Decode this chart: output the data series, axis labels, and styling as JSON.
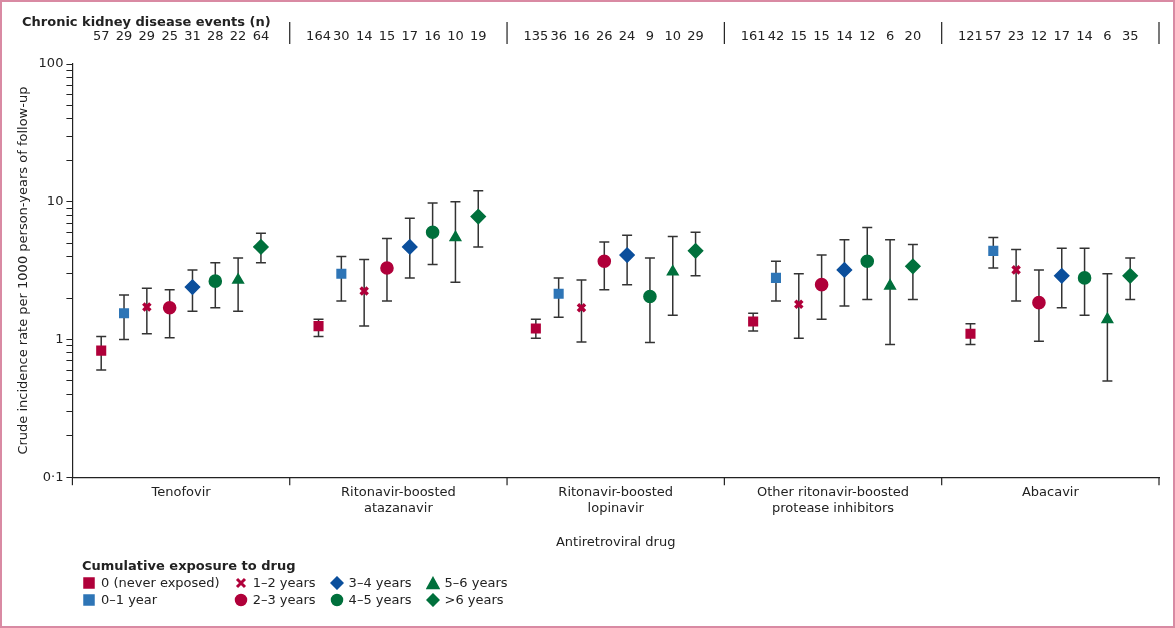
{
  "chart_data": {
    "type": "scatter",
    "xlabel": "Antiretroviral drug",
    "ylabel": "Crude incidence rate per 1000 person-years of follow-up",
    "legend_title": "Cumulative exposure to drug",
    "legend": "bottom left",
    "log": true,
    "grid": false,
    "annotations": [
      "Chronic kidney disease events (n)",
      "57",
      "29",
      "29",
      "25",
      "31",
      "28",
      "22",
      "64",
      "164",
      "30",
      "14",
      "15",
      "17",
      "16",
      "10",
      "19",
      "135",
      "36",
      "16",
      "26",
      "24",
      "9",
      "10",
      "29",
      "161",
      "42",
      "15",
      "15",
      "14",
      "12",
      "6",
      "20",
      "121",
      "57",
      "23",
      "12",
      "17",
      "14",
      "6",
      "35"
    ],
    "categories": [
      "Tenofovir",
      "Ritonavir-boosted atazanavir",
      "Ritonavir-boosted lopinavir",
      "Other ritonavir-boosted protease inhibitors",
      "Abacavir"
    ],
    "ylim": [
      0.1,
      100
    ],
    "yticks": [
      {
        "value": 0.1,
        "label": "0·1"
      },
      {
        "value": 0.2,
        "label": null
      },
      {
        "value": 0.3,
        "label": null
      },
      {
        "value": 0.4,
        "label": null
      },
      {
        "value": 0.5,
        "label": null
      },
      {
        "value": 0.6,
        "label": null
      },
      {
        "value": 0.7,
        "label": null
      },
      {
        "value": 0.8,
        "label": null
      },
      {
        "value": 0.9,
        "label": null
      },
      1,
      {
        "value": 2,
        "label": null
      },
      {
        "value": 3,
        "label": null
      },
      {
        "value": 4,
        "label": null
      },
      {
        "value": 5,
        "label": null
      },
      {
        "value": 6,
        "label": null
      },
      {
        "value": 7,
        "label": null
      },
      {
        "value": 8,
        "label": null
      },
      {
        "value": 9,
        "label": null
      },
      10,
      {
        "value": 20,
        "label": null
      },
      {
        "value": 30,
        "label": null
      },
      {
        "value": 40,
        "label": null
      },
      {
        "value": 50,
        "label": null
      },
      {
        "value": 60,
        "label": null
      },
      {
        "value": 70,
        "label": null
      },
      {
        "value": 80,
        "label": null
      },
      {
        "value": 90,
        "label": null
      },
      100
    ],
    "series": [
      {
        "name": "0 (never exposed)",
        "color": "#b0003a",
        "marker": "square",
        "values": [
          0.83,
          1.25,
          1.2,
          1.35,
          1.1
        ],
        "errors": [
          [
            0.6,
            1.05
          ],
          [
            1.05,
            1.4
          ],
          [
            1.02,
            1.4
          ],
          [
            1.15,
            1.55
          ],
          [
            0.92,
            1.3
          ]
        ]
      },
      {
        "name": "0–1 year",
        "color": "#2e75b6",
        "marker": "square",
        "values": [
          1.55,
          3.0,
          2.15,
          2.8,
          4.4
        ],
        "errors": [
          [
            1.0,
            2.1
          ],
          [
            1.9,
            4.0
          ],
          [
            1.45,
            2.8
          ],
          [
            1.9,
            3.7
          ],
          [
            3.3,
            5.5
          ]
        ]
      },
      {
        "name": "1–2 years",
        "color": "#b0003a",
        "marker": "cross",
        "values": [
          1.72,
          2.25,
          1.7,
          1.8,
          3.2
        ],
        "errors": [
          [
            1.1,
            2.35
          ],
          [
            1.25,
            3.8
          ],
          [
            0.96,
            2.7
          ],
          [
            1.02,
            3.0
          ],
          [
            1.9,
            4.5
          ]
        ]
      },
      {
        "name": "2–3 years",
        "color": "#b0003a",
        "marker": "circle",
        "values": [
          1.7,
          3.3,
          3.7,
          2.5,
          1.85
        ],
        "errors": [
          [
            1.03,
            2.3
          ],
          [
            1.9,
            5.4
          ],
          [
            2.3,
            5.1
          ],
          [
            1.4,
            4.1
          ],
          [
            0.97,
            3.2
          ]
        ]
      },
      {
        "name": "3–4 years",
        "color": "#0b4f9c",
        "marker": "diamond",
        "values": [
          2.4,
          4.7,
          4.1,
          3.2,
          2.9
        ],
        "errors": [
          [
            1.6,
            3.2
          ],
          [
            2.8,
            7.6
          ],
          [
            2.5,
            5.7
          ],
          [
            1.75,
            5.3
          ],
          [
            1.7,
            4.6
          ]
        ]
      },
      {
        "name": "4–5 years",
        "color": "#00703c",
        "marker": "circle",
        "values": [
          2.65,
          6.0,
          2.05,
          3.7,
          2.8
        ],
        "errors": [
          [
            1.7,
            3.6
          ],
          [
            3.5,
            9.8
          ],
          [
            0.95,
            3.9
          ],
          [
            1.95,
            6.5
          ],
          [
            1.5,
            4.6
          ]
        ]
      },
      {
        "name": "5–6 years",
        "color": "#00703c",
        "marker": "triangle",
        "values": [
          2.7,
          5.5,
          3.1,
          2.45,
          1.4
        ],
        "errors": [
          [
            1.6,
            3.9
          ],
          [
            2.6,
            10
          ],
          [
            1.5,
            5.6
          ],
          [
            0.92,
            5.3
          ],
          [
            0.5,
            3.0
          ]
        ]
      },
      {
        "name": ">6 years",
        "color": "#00703c",
        "marker": "diamond",
        "values": [
          4.7,
          7.8,
          4.4,
          3.4,
          2.9
        ],
        "errors": [
          [
            3.6,
            5.9
          ],
          [
            4.7,
            12
          ],
          [
            2.9,
            6.0
          ],
          [
            1.95,
            4.9
          ],
          [
            1.95,
            3.9
          ]
        ]
      }
    ]
  }
}
